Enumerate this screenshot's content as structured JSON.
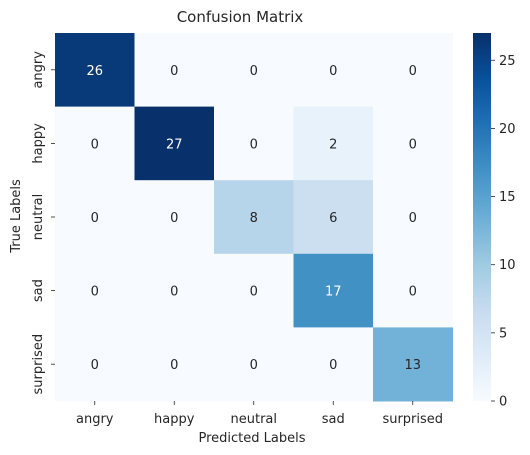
{
  "chart_data": {
    "type": "heatmap",
    "title": "Confusion Matrix",
    "xlabel": "Predicted Labels",
    "ylabel": "True Labels",
    "x_categories": [
      "angry",
      "happy",
      "neutral",
      "sad",
      "surprised"
    ],
    "y_categories": [
      "angry",
      "happy",
      "neutral",
      "sad",
      "surprised"
    ],
    "values": [
      [
        26,
        0,
        0,
        0,
        0
      ],
      [
        0,
        27,
        0,
        2,
        0
      ],
      [
        0,
        0,
        8,
        6,
        0
      ],
      [
        0,
        0,
        0,
        17,
        0
      ],
      [
        0,
        0,
        0,
        0,
        13
      ]
    ],
    "colorscale": "Blues",
    "vmin": 0,
    "vmax": 27,
    "colorbar_ticks": [
      0,
      5,
      10,
      15,
      20,
      25
    ],
    "legend_position": "right"
  }
}
